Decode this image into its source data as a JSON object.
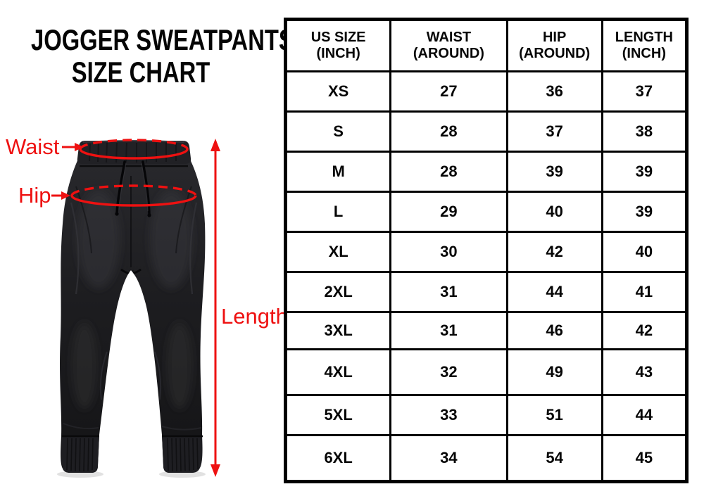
{
  "title": {
    "line1": "JOGGER SWEATPANTS",
    "line2": "SIZE CHART"
  },
  "diagram": {
    "icon": "jogger-sweatpants-front-view",
    "labels": {
      "waist": "Waist",
      "hip": "Hip",
      "length": "Length"
    },
    "annotation_color": "#EE1111",
    "pants_color": "#1B1B1E"
  },
  "table": {
    "headers": [
      "US SIZE\n(INCH)",
      "WAIST\n(AROUND)",
      "HIP\n(AROUND)",
      "LENGTH\n(INCH)"
    ]
  },
  "chart_data": {
    "type": "table",
    "title": "JOGGER SWEATPANTS SIZE CHART",
    "columns": [
      "US SIZE (INCH)",
      "WAIST (AROUND)",
      "HIP (AROUND)",
      "LENGTH (INCH)"
    ],
    "rows": [
      [
        "XS",
        27,
        36,
        37
      ],
      [
        "S",
        28,
        37,
        38
      ],
      [
        "M",
        28,
        39,
        39
      ],
      [
        "L",
        29,
        40,
        39
      ],
      [
        "XL",
        30,
        42,
        40
      ],
      [
        "2XL",
        31,
        44,
        41
      ],
      [
        "3XL",
        31,
        46,
        42
      ],
      [
        "4XL",
        32,
        49,
        43
      ],
      [
        "5XL",
        33,
        51,
        44
      ],
      [
        "6XL",
        34,
        54,
        45
      ]
    ]
  }
}
